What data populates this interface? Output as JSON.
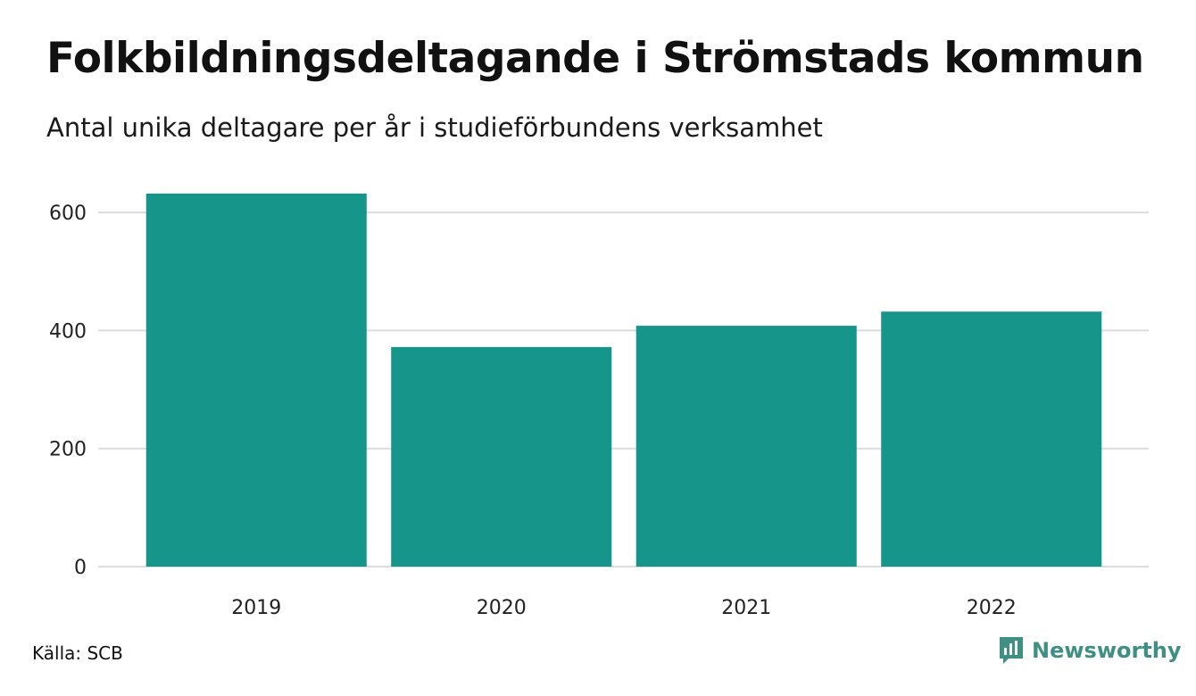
{
  "chart_data": {
    "type": "bar",
    "title": "Folkbildningsdeltagande i Strömstads kommun",
    "subtitle": "Antal unika deltagare per år i studieförbundens verksamhet",
    "categories": [
      "2019",
      "2020",
      "2021",
      "2022"
    ],
    "values": [
      632,
      372,
      408,
      432
    ],
    "ylim": [
      0,
      650
    ],
    "yticks": [
      0,
      200,
      400,
      600
    ],
    "grid": true,
    "bar_color": "#16958a",
    "grid_color": "#dcdcdc"
  },
  "footer": {
    "source": "Källa: SCB",
    "brand": "Newsworthy",
    "brand_color": "#3f8f84",
    "brand_icon": "newsworthy-logo-icon"
  }
}
